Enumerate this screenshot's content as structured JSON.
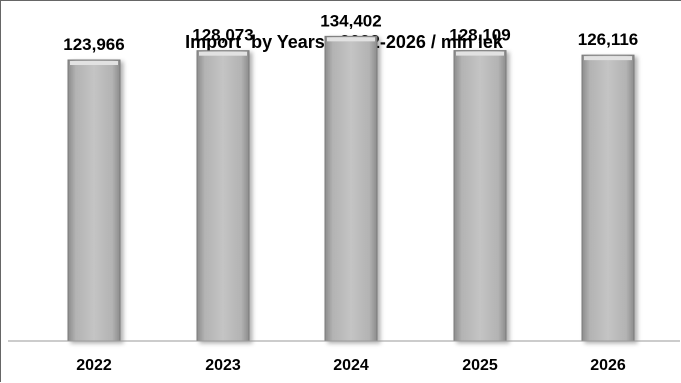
{
  "chart_data": {
    "type": "bar",
    "title": "Import  by Years   2022-2026 / mln lek",
    "categories": [
      "2022",
      "2023",
      "2024",
      "2025",
      "2026"
    ],
    "values": [
      123966,
      128073,
      134402,
      128109,
      126116
    ],
    "data_labels": [
      "123,966",
      "128,073",
      "134,402",
      "128,109",
      "126,116"
    ],
    "xlabel": "",
    "ylabel": "",
    "ylim": [
      0,
      150000
    ],
    "grid": false,
    "legend": "none",
    "colors": {
      "bar_fill": "#b5b5b5",
      "bar_edge": "#7a7a7a",
      "bar_highlight": "#e2e2e2",
      "axis_line": "#9a9a9a"
    }
  }
}
